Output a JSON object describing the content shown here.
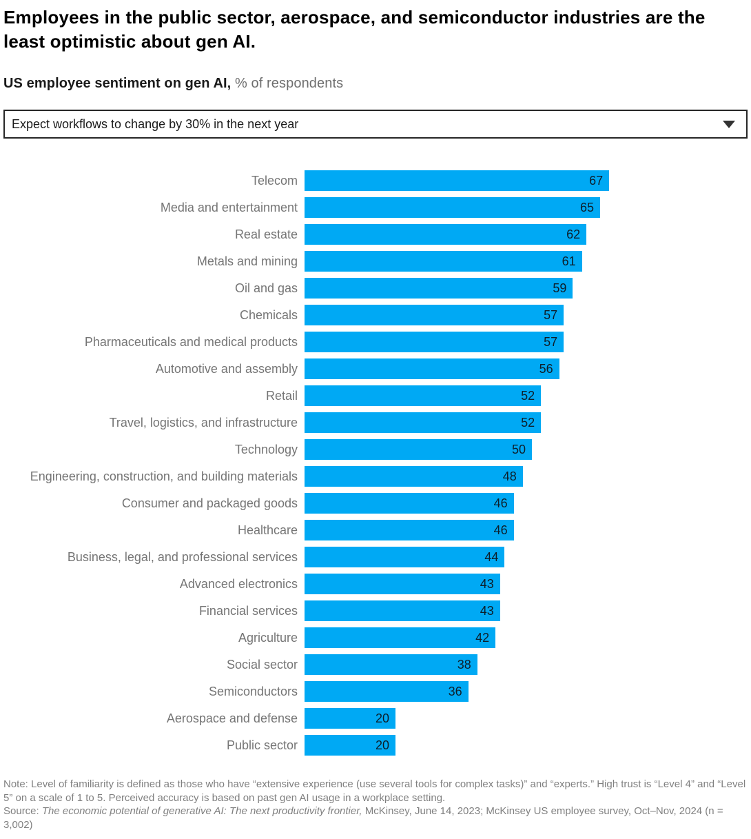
{
  "header": {
    "title": "Employees in the public sector, aerospace, and semiconductor industries are the least optimistic about gen AI.",
    "subtitle_bold": "US employee sentiment on gen AI,",
    "subtitle_light": " % of respondents"
  },
  "dropdown": {
    "value": "Expect workflows to change by 30% in the next year",
    "icon": "caret-down-icon"
  },
  "chart_data": {
    "type": "bar",
    "orientation": "horizontal",
    "title": "US employee sentiment on gen AI, % of respondents",
    "filter_selected": "Expect workflows to change by 30% in the next year",
    "categories": [
      "Telecom",
      "Media and entertainment",
      "Real estate",
      "Metals and mining",
      "Oil and gas",
      "Chemicals",
      "Pharmaceuticals and medical products",
      "Automotive and assembly",
      "Retail",
      "Travel, logistics, and infrastructure",
      "Technology",
      "Engineering, construction, and building materials",
      "Consumer and packaged goods",
      "Healthcare",
      "Business, legal, and professional services",
      "Advanced electronics",
      "Financial services",
      "Agriculture",
      "Social sector",
      "Semiconductors",
      "Aerospace and defense",
      "Public sector"
    ],
    "values": [
      67,
      65,
      62,
      61,
      59,
      57,
      57,
      56,
      52,
      52,
      50,
      48,
      46,
      46,
      44,
      43,
      43,
      42,
      38,
      36,
      20,
      20
    ],
    "unit": "% of respondents",
    "bar_color": "#00A9F4",
    "value_label_position": "inside-end",
    "value_label_color": "#0d1f2b",
    "category_label_color": "#757575",
    "axis": "hidden",
    "xlim": [
      0,
      67
    ],
    "grid": false,
    "legend": "none"
  },
  "footer": {
    "note": "Note: Level of familiarity is defined as those who have “extensive experience (use several tools for complex tasks)” and “experts.” High trust is “Level 4” and “Level 5” on a scale of 1 to 5. Perceived accuracy is based on past gen AI usage in a workplace setting.",
    "source_prefix": "Source: ",
    "source_italic": "The economic potential of generative AI: The next productivity frontier,",
    "source_rest": " McKinsey, June 14, 2023; McKinsey US employee survey, Oct–Nov, 2024 (n = 3,002)"
  }
}
